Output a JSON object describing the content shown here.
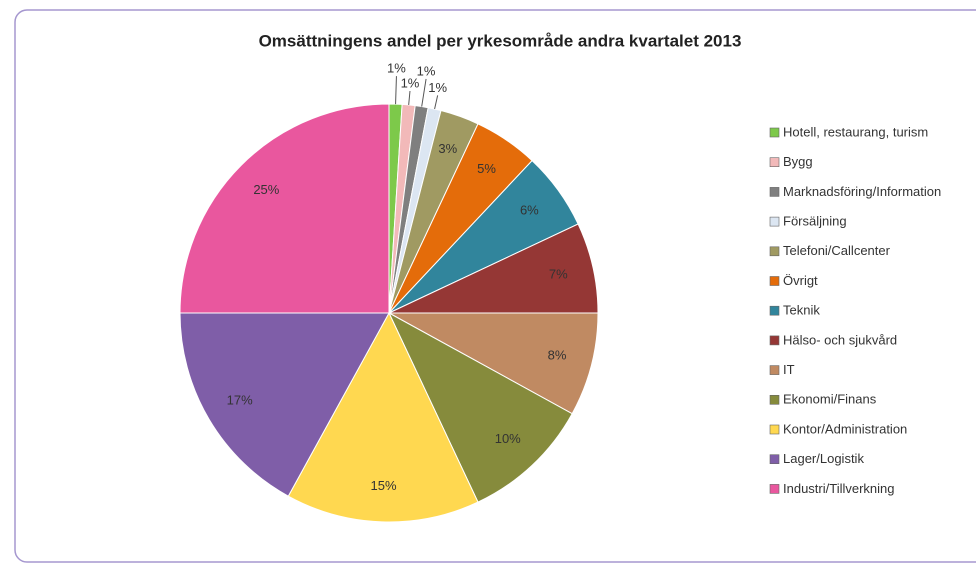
{
  "chart_data": {
    "type": "pie",
    "title": "Omsättningens andel per yrkesområde andra kvartalet 2013",
    "categories": [
      "Hotell, restaurang, turism",
      "Bygg",
      "Marknadsföring/Information",
      "Försäljning",
      "Telefoni/Callcenter",
      "Övrigt",
      "Teknik",
      "Hälso- och sjukvård",
      "IT",
      "Ekonomi/Finans",
      "Kontor/Administration",
      "Lager/Logistik",
      "Industri/Tillverkning"
    ],
    "values": [
      1,
      1,
      1,
      1,
      3,
      5,
      6,
      7,
      8,
      10,
      15,
      17,
      25
    ],
    "value_labels": [
      "1%",
      "1%",
      "1%",
      "1%",
      "3%",
      "5%",
      "6%",
      "7%",
      "8%",
      "10%",
      "15%",
      "17%",
      "25%"
    ],
    "colors": [
      "#7dc94a",
      "#f2b9b9",
      "#7f7f7f",
      "#dce6f2",
      "#a09a62",
      "#e46c0a",
      "#31859c",
      "#953735",
      "#c08a62",
      "#868b3c",
      "#ffd850",
      "#7f5ea8",
      "#e9579e"
    ],
    "legend": "right"
  }
}
